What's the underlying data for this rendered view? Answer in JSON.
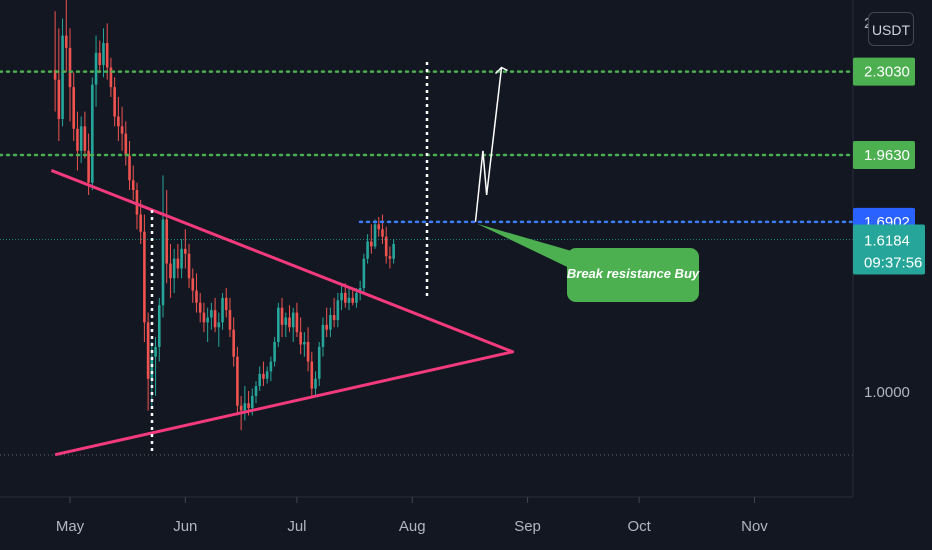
{
  "chart_data": {
    "type": "candlestick",
    "quote_currency": "USDT",
    "x_ticks": [
      "May",
      "Jun",
      "Jul",
      "Aug",
      "Sep",
      "Oct",
      "Nov"
    ],
    "y_ticks": [
      "1.0000"
    ],
    "y_top_partial": "2",
    "levels": [
      {
        "value": 2.303,
        "label": "2.3030",
        "color": "#4caf50",
        "style": "dotted"
      },
      {
        "value": 1.963,
        "label": "1.9630",
        "color": "#4caf50",
        "style": "dotted"
      },
      {
        "value": 1.6902,
        "label": "1.6902",
        "color": "#2962ff",
        "style": "dotted"
      }
    ],
    "current_price": {
      "label": "1.6184",
      "countdown": "09:37:56",
      "color": "#26a69a"
    },
    "annotation": {
      "text": "Break resistance Buy",
      "color": "#4caf50"
    },
    "triangle": {
      "upper_line": {
        "from": [
          "Apr 26",
          1.9
        ],
        "to": [
          "Aug 28",
          1.16
        ]
      },
      "lower_line": {
        "from": [
          "Apr 27",
          0.74
        ],
        "to": [
          "Aug 28",
          1.16
        ]
      },
      "apex": [
        "Aug 28",
        1.16
      ]
    },
    "projection": {
      "from": [
        "Aug 18",
        1.6902
      ],
      "via": [
        [
          "Aug 20",
          1.98
        ],
        [
          "Aug 21",
          1.8
        ]
      ],
      "to": [
        "Aug 25",
        2.32
      ]
    },
    "candles": [
      {
        "o": 2.31,
        "h": 2.55,
        "l": 2.14,
        "c": 2.27
      },
      {
        "o": 2.27,
        "h": 2.48,
        "l": 2.02,
        "c": 2.11
      },
      {
        "o": 2.11,
        "h": 2.52,
        "l": 2.08,
        "c": 2.45
      },
      {
        "o": 2.45,
        "h": 2.62,
        "l": 2.3,
        "c": 2.4
      },
      {
        "o": 2.4,
        "h": 2.48,
        "l": 2.1,
        "c": 2.24
      },
      {
        "o": 2.24,
        "h": 2.3,
        "l": 2.02,
        "c": 2.07
      },
      {
        "o": 2.07,
        "h": 2.14,
        "l": 1.9,
        "c": 1.98
      },
      {
        "o": 1.98,
        "h": 2.12,
        "l": 1.93,
        "c": 2.08
      },
      {
        "o": 2.08,
        "h": 2.14,
        "l": 1.95,
        "c": 1.98
      },
      {
        "o": 1.98,
        "h": 2.05,
        "l": 1.8,
        "c": 1.85
      },
      {
        "o": 1.85,
        "h": 2.28,
        "l": 1.82,
        "c": 2.25
      },
      {
        "o": 2.25,
        "h": 2.45,
        "l": 2.16,
        "c": 2.38
      },
      {
        "o": 2.38,
        "h": 2.43,
        "l": 2.3,
        "c": 2.33
      },
      {
        "o": 2.33,
        "h": 2.48,
        "l": 2.28,
        "c": 2.42
      },
      {
        "o": 2.42,
        "h": 2.5,
        "l": 2.27,
        "c": 2.32
      },
      {
        "o": 2.32,
        "h": 2.36,
        "l": 2.2,
        "c": 2.24
      },
      {
        "o": 2.24,
        "h": 2.28,
        "l": 2.08,
        "c": 2.12
      },
      {
        "o": 2.12,
        "h": 2.2,
        "l": 2.02,
        "c": 2.08
      },
      {
        "o": 2.08,
        "h": 2.16,
        "l": 1.98,
        "c": 2.05
      },
      {
        "o": 2.05,
        "h": 2.1,
        "l": 1.92,
        "c": 1.96
      },
      {
        "o": 1.96,
        "h": 2.02,
        "l": 1.82,
        "c": 1.86
      },
      {
        "o": 1.86,
        "h": 1.92,
        "l": 1.78,
        "c": 1.82
      },
      {
        "o": 1.82,
        "h": 1.85,
        "l": 1.66,
        "c": 1.72
      },
      {
        "o": 1.72,
        "h": 1.78,
        "l": 1.6,
        "c": 1.65
      },
      {
        "o": 1.65,
        "h": 1.72,
        "l": 1.2,
        "c": 1.28
      },
      {
        "o": 1.28,
        "h": 1.32,
        "l": 0.92,
        "c": 1.05
      },
      {
        "o": 1.05,
        "h": 1.2,
        "l": 0.94,
        "c": 1.14
      },
      {
        "o": 1.14,
        "h": 1.22,
        "l": 0.98,
        "c": 1.18
      },
      {
        "o": 1.18,
        "h": 1.38,
        "l": 1.12,
        "c": 1.35
      },
      {
        "o": 1.35,
        "h": 1.88,
        "l": 1.3,
        "c": 1.7
      },
      {
        "o": 1.7,
        "h": 1.82,
        "l": 1.44,
        "c": 1.52
      },
      {
        "o": 1.52,
        "h": 1.6,
        "l": 1.38,
        "c": 1.46
      },
      {
        "o": 1.46,
        "h": 1.58,
        "l": 1.4,
        "c": 1.54
      },
      {
        "o": 1.54,
        "h": 1.6,
        "l": 1.46,
        "c": 1.5
      },
      {
        "o": 1.5,
        "h": 1.62,
        "l": 1.46,
        "c": 1.58
      },
      {
        "o": 1.58,
        "h": 1.66,
        "l": 1.5,
        "c": 1.56
      },
      {
        "o": 1.56,
        "h": 1.6,
        "l": 1.42,
        "c": 1.46
      },
      {
        "o": 1.46,
        "h": 1.5,
        "l": 1.36,
        "c": 1.41
      },
      {
        "o": 1.41,
        "h": 1.48,
        "l": 1.32,
        "c": 1.36
      },
      {
        "o": 1.36,
        "h": 1.4,
        "l": 1.28,
        "c": 1.32
      },
      {
        "o": 1.32,
        "h": 1.36,
        "l": 1.24,
        "c": 1.28
      },
      {
        "o": 1.28,
        "h": 1.34,
        "l": 1.2,
        "c": 1.3
      },
      {
        "o": 1.3,
        "h": 1.36,
        "l": 1.25,
        "c": 1.33
      },
      {
        "o": 1.33,
        "h": 1.38,
        "l": 1.24,
        "c": 1.26
      },
      {
        "o": 1.26,
        "h": 1.32,
        "l": 1.18,
        "c": 1.28
      },
      {
        "o": 1.28,
        "h": 1.4,
        "l": 1.25,
        "c": 1.38
      },
      {
        "o": 1.38,
        "h": 1.42,
        "l": 1.3,
        "c": 1.33
      },
      {
        "o": 1.33,
        "h": 1.38,
        "l": 1.22,
        "c": 1.25
      },
      {
        "o": 1.25,
        "h": 1.3,
        "l": 1.1,
        "c": 1.14
      },
      {
        "o": 1.14,
        "h": 1.18,
        "l": 0.9,
        "c": 0.94
      },
      {
        "o": 0.94,
        "h": 0.98,
        "l": 0.84,
        "c": 0.92
      },
      {
        "o": 0.92,
        "h": 1.02,
        "l": 0.88,
        "c": 0.95
      },
      {
        "o": 0.95,
        "h": 1.0,
        "l": 0.9,
        "c": 0.93
      },
      {
        "o": 0.93,
        "h": 1.01,
        "l": 0.9,
        "c": 0.98
      },
      {
        "o": 0.98,
        "h": 1.04,
        "l": 0.95,
        "c": 1.02
      },
      {
        "o": 1.02,
        "h": 1.1,
        "l": 1.0,
        "c": 1.07
      },
      {
        "o": 1.07,
        "h": 1.12,
        "l": 1.02,
        "c": 1.05
      },
      {
        "o": 1.05,
        "h": 1.1,
        "l": 1.03,
        "c": 1.08
      },
      {
        "o": 1.08,
        "h": 1.14,
        "l": 1.04,
        "c": 1.12
      },
      {
        "o": 1.12,
        "h": 1.22,
        "l": 1.1,
        "c": 1.2
      },
      {
        "o": 1.2,
        "h": 1.36,
        "l": 1.18,
        "c": 1.34
      },
      {
        "o": 1.34,
        "h": 1.38,
        "l": 1.22,
        "c": 1.27
      },
      {
        "o": 1.27,
        "h": 1.32,
        "l": 1.22,
        "c": 1.3
      },
      {
        "o": 1.3,
        "h": 1.35,
        "l": 1.24,
        "c": 1.26
      },
      {
        "o": 1.26,
        "h": 1.34,
        "l": 1.2,
        "c": 1.32
      },
      {
        "o": 1.32,
        "h": 1.36,
        "l": 1.22,
        "c": 1.24
      },
      {
        "o": 1.24,
        "h": 1.3,
        "l": 1.15,
        "c": 1.19
      },
      {
        "o": 1.19,
        "h": 1.24,
        "l": 1.14,
        "c": 1.2
      },
      {
        "o": 1.2,
        "h": 1.26,
        "l": 1.08,
        "c": 1.12
      },
      {
        "o": 1.12,
        "h": 1.16,
        "l": 0.98,
        "c": 1.01
      },
      {
        "o": 1.01,
        "h": 1.08,
        "l": 0.98,
        "c": 1.05
      },
      {
        "o": 1.05,
        "h": 1.2,
        "l": 1.02,
        "c": 1.18
      },
      {
        "o": 1.18,
        "h": 1.3,
        "l": 1.14,
        "c": 1.27
      },
      {
        "o": 1.27,
        "h": 1.34,
        "l": 1.22,
        "c": 1.25
      },
      {
        "o": 1.25,
        "h": 1.34,
        "l": 1.22,
        "c": 1.31
      },
      {
        "o": 1.31,
        "h": 1.38,
        "l": 1.26,
        "c": 1.29
      },
      {
        "o": 1.29,
        "h": 1.4,
        "l": 1.26,
        "c": 1.37
      },
      {
        "o": 1.37,
        "h": 1.43,
        "l": 1.33,
        "c": 1.4
      },
      {
        "o": 1.4,
        "h": 1.44,
        "l": 1.34,
        "c": 1.36
      },
      {
        "o": 1.36,
        "h": 1.42,
        "l": 1.33,
        "c": 1.38
      },
      {
        "o": 1.38,
        "h": 1.42,
        "l": 1.35,
        "c": 1.36
      },
      {
        "o": 1.36,
        "h": 1.42,
        "l": 1.34,
        "c": 1.4
      },
      {
        "o": 1.4,
        "h": 1.45,
        "l": 1.37,
        "c": 1.42
      },
      {
        "o": 1.42,
        "h": 1.56,
        "l": 1.4,
        "c": 1.54
      },
      {
        "o": 1.54,
        "h": 1.64,
        "l": 1.52,
        "c": 1.61
      },
      {
        "o": 1.61,
        "h": 1.68,
        "l": 1.56,
        "c": 1.59
      },
      {
        "o": 1.59,
        "h": 1.7,
        "l": 1.58,
        "c": 1.68
      },
      {
        "o": 1.68,
        "h": 1.71,
        "l": 1.63,
        "c": 1.66
      },
      {
        "o": 1.66,
        "h": 1.72,
        "l": 1.6,
        "c": 1.63
      },
      {
        "o": 1.63,
        "h": 1.67,
        "l": 1.52,
        "c": 1.55
      },
      {
        "o": 1.55,
        "h": 1.59,
        "l": 1.5,
        "c": 1.54
      },
      {
        "o": 1.54,
        "h": 1.62,
        "l": 1.52,
        "c": 1.6
      }
    ]
  }
}
